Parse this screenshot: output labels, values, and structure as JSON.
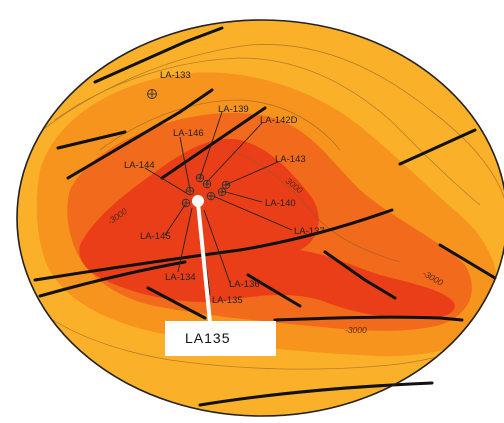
{
  "map": {
    "colors": {
      "background": "#ffffff",
      "outer": "#fbb02a",
      "mid": "#f7941d",
      "inner": "#f26a1b",
      "core": "#ea3e18",
      "contour_line": "#8a5a2a",
      "fault": "#111111",
      "border": "#222222",
      "callout_line": "#ffffff",
      "callout_box": "#ffffff"
    },
    "wells": [
      {
        "id": "w133",
        "label": "LA-133"
      },
      {
        "id": "w139",
        "label": "LA-139"
      },
      {
        "id": "w142d",
        "label": "LA-142D"
      },
      {
        "id": "w146",
        "label": "LA-146"
      },
      {
        "id": "w144",
        "label": "LA-144"
      },
      {
        "id": "w143",
        "label": "LA-143"
      },
      {
        "id": "w140",
        "label": "LA-140"
      },
      {
        "id": "w145",
        "label": "LA-145"
      },
      {
        "id": "w137",
        "label": "LA-137"
      },
      {
        "id": "w134",
        "label": "LA-134"
      },
      {
        "id": "w136",
        "label": "LA-136"
      },
      {
        "id": "w135",
        "label": "LA-135"
      }
    ],
    "contour_labels": [
      "3000",
      "-3000",
      "-3000",
      "-3000"
    ],
    "highlighted_well": {
      "label": "LA135"
    }
  }
}
